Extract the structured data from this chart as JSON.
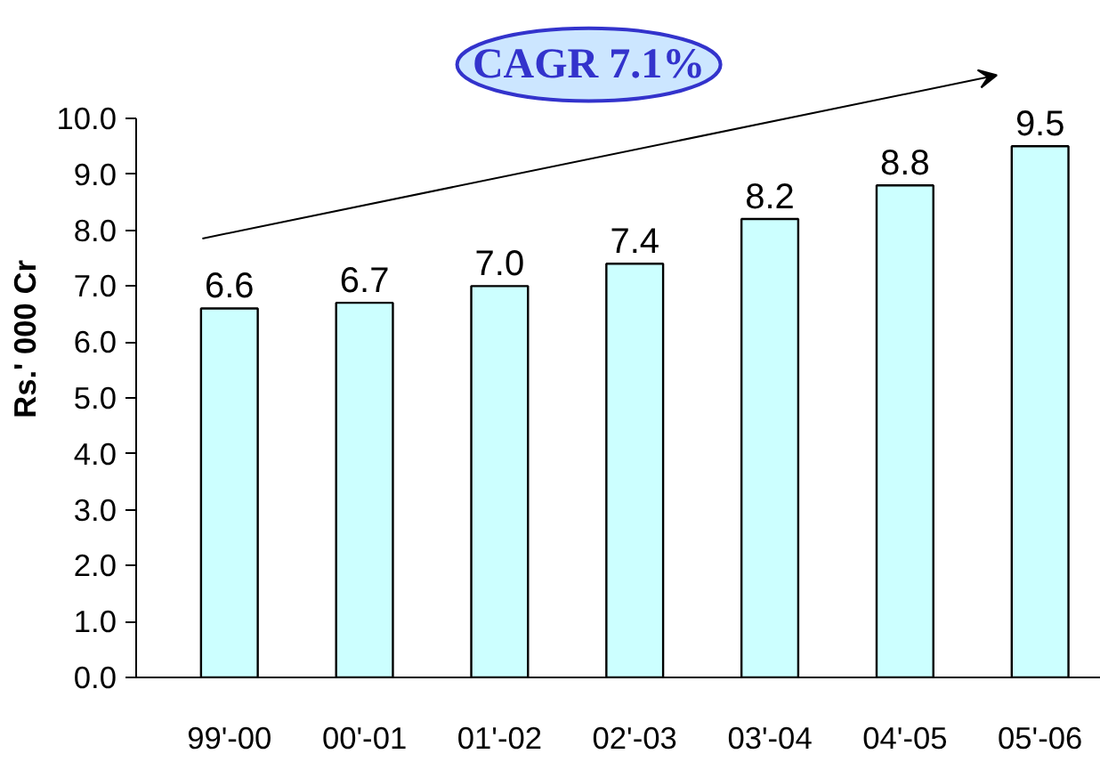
{
  "chart_data": {
    "type": "bar",
    "ylabel": "Rs.' 000 Cr",
    "categories": [
      "99'-00",
      "00'-01",
      "01'-02",
      "02'-03",
      "03'-04",
      "04'-05",
      "05'-06"
    ],
    "values": [
      6.6,
      6.7,
      7.0,
      7.4,
      8.2,
      8.8,
      9.5
    ],
    "color": "#ccffff",
    "value_labels": [
      "6.6",
      "6.7",
      "7.0",
      "7.4",
      "8.2",
      "8.8",
      "9.5"
    ],
    "ylim": [
      0,
      10
    ],
    "yticks": [
      {
        "value": 0,
        "label": "0.0"
      },
      {
        "value": 1,
        "label": "1.0"
      },
      {
        "value": 2,
        "label": "2.0"
      },
      {
        "value": 3,
        "label": "3.0"
      },
      {
        "value": 4,
        "label": "4.0"
      },
      {
        "value": 5,
        "label": "5.0"
      },
      {
        "value": 6,
        "label": "6.0"
      },
      {
        "value": 7,
        "label": "7.0"
      },
      {
        "value": 8,
        "label": "8.0"
      },
      {
        "value": 9,
        "label": "9.0"
      },
      {
        "value": 10,
        "label": "10.0"
      }
    ],
    "grid": false,
    "annotations": [
      "CAGR 7.1%"
    ]
  }
}
